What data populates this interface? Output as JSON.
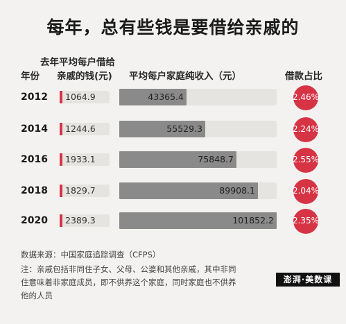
{
  "title": "每年，总有些钱是要借给亲戚的",
  "headers": {
    "year": "年份",
    "loan_line1": "去年平均每户借给",
    "loan_line2": "亲戚的钱(元)",
    "income": "平均每户家庭纯收入（元）",
    "ratio": "借款占比"
  },
  "chart_data": {
    "type": "bar",
    "categories": [
      "2012",
      "2014",
      "2016",
      "2018",
      "2020"
    ],
    "series": [
      {
        "name": "去年平均每户借给亲戚的钱(元)",
        "values": [
          1064.9,
          1244.6,
          1933.1,
          1829.7,
          2389.3
        ]
      },
      {
        "name": "平均每户家庭纯收入（元）",
        "values": [
          43365.4,
          55529.3,
          75848.7,
          89908.1,
          101852.2
        ]
      },
      {
        "name": "借款占比",
        "values": [
          "2.46%",
          "2.24%",
          "2.55%",
          "2.04%",
          "2.35%"
        ]
      }
    ],
    "income_max": 101852.2,
    "colors": {
      "accent": "#d63445",
      "bar": "#8a8a8a",
      "track": "#e6e4e1"
    }
  },
  "rows": [
    {
      "year": "2012",
      "loan": "1064.9",
      "income": "43365.4",
      "ratio": "2.46%"
    },
    {
      "year": "2014",
      "loan": "1244.6",
      "income": "55529.3",
      "ratio": "2.24%"
    },
    {
      "year": "2016",
      "loan": "1933.1",
      "income": "75848.7",
      "ratio": "2.55%"
    },
    {
      "year": "2018",
      "loan": "1829.7",
      "income": "89908.1",
      "ratio": "2.04%"
    },
    {
      "year": "2020",
      "loan": "2389.3",
      "income": "101852.2",
      "ratio": "2.35%"
    }
  ],
  "notes": {
    "source": "数据来源：中国家庭追踪调查（CFPS）",
    "note_line1": "注：亲戚包括非同住子女、父母、公婆和其他亲戚，其中非同",
    "note_line2": "住意味着非家庭成员，即不供养这个家庭，同时家庭也不供养",
    "note_line3": "他的人员"
  },
  "logo": {
    "text": "澎湃·美数课"
  }
}
